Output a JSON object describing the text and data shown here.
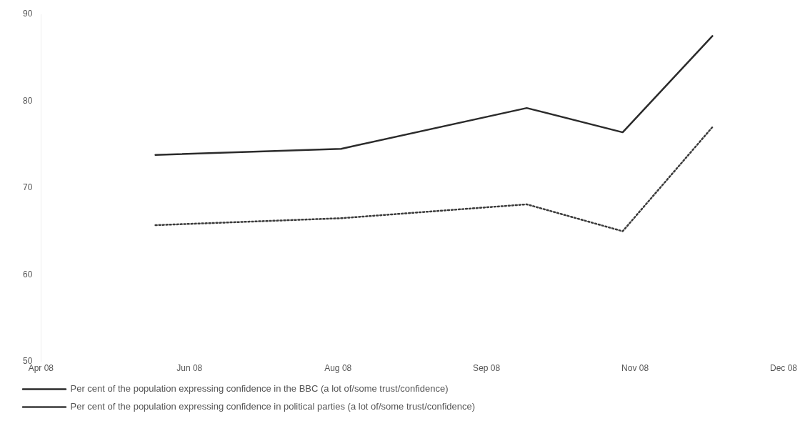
{
  "chart_data": {
    "type": "line",
    "x": [
      "2008-06-06",
      "2008-08-05",
      "2008-10-04",
      "2008-11-04",
      "2008-12-03"
    ],
    "series": [
      {
        "name": "Per cent of the population expressing confidence in the BBC (a lot of/some trust/confidence)",
        "color": "#2b2b2b",
        "line_style": "solid",
        "values": [
          73.8,
          74.5,
          79.2,
          76.4,
          87.5
        ]
      },
      {
        "name": "Per cent of the population expressing confidence in political parties (a lot of/some trust/confidence)",
        "color": "#3a3a3a",
        "line_style": "dotted",
        "values": [
          65.7,
          66.5,
          68.1,
          65.0,
          77.0
        ]
      }
    ],
    "xlim": [
      "2008-04-30",
      "2008-12-26"
    ],
    "xticks": [
      {
        "value": "2008-04-30",
        "label": "Apr 08"
      },
      {
        "value": "2008-06-17",
        "label": "Jun 08"
      },
      {
        "value": "2008-08-04",
        "label": "Aug 08"
      },
      {
        "value": "2008-09-21",
        "label": "Sep 08"
      },
      {
        "value": "2008-11-08",
        "label": "Nov 08"
      },
      {
        "value": "2008-12-26",
        "label": "Dec 08"
      }
    ],
    "ylim": [
      50,
      90
    ],
    "yticks": [
      50,
      60,
      70,
      80,
      90
    ],
    "grid": false,
    "marker": "none",
    "legend": "bottom"
  }
}
